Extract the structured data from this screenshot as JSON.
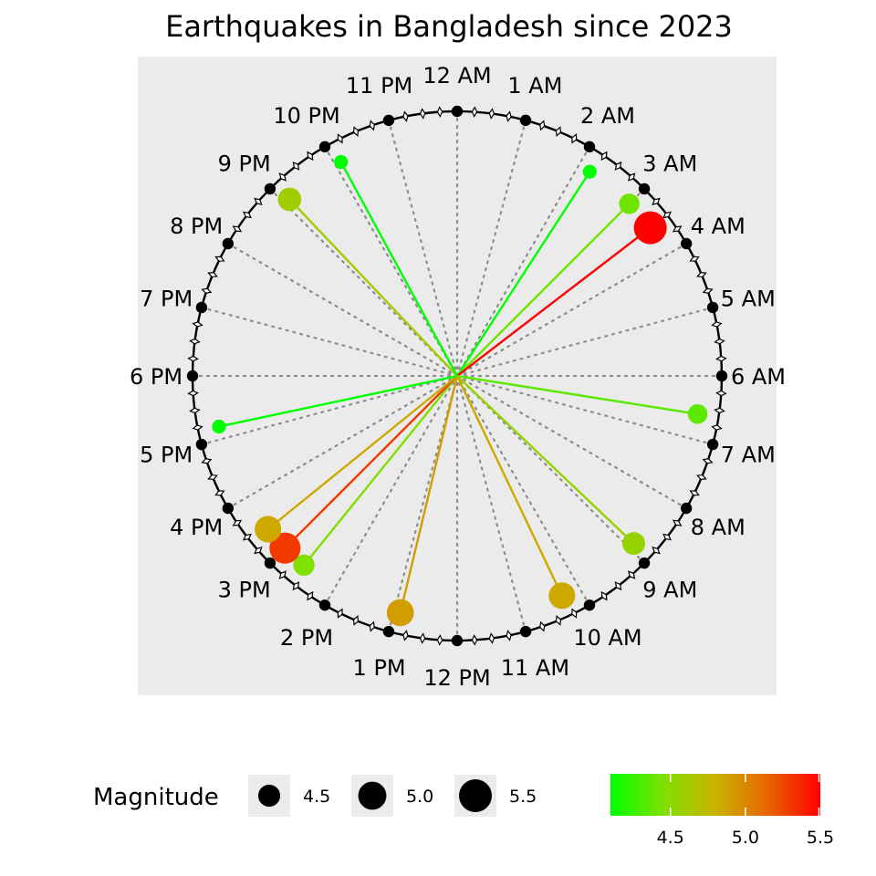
{
  "chart_data": {
    "type": "scatter",
    "coordinate_system": "polar-clock-12h",
    "title": "Earthquakes in Bangladesh since 2023",
    "hour_labels": [
      "12 AM",
      "1 AM",
      "2 AM",
      "3 AM",
      "4 AM",
      "5 AM",
      "6 AM",
      "7 AM",
      "8 AM",
      "9 AM",
      "10 AM",
      "11 AM",
      "12 PM",
      "1 PM",
      "2 PM",
      "3 PM",
      "4 PM",
      "5 PM",
      "6 PM",
      "7 PM",
      "8 PM",
      "9 PM",
      "10 PM",
      "11 PM"
    ],
    "earthquakes": [
      {
        "time_hours": 2.2,
        "magnitude": 4.1
      },
      {
        "time_hours": 3.0,
        "magnitude": 4.4
      },
      {
        "time_hours": 3.5,
        "magnitude": 5.5
      },
      {
        "time_hours": 6.6,
        "magnitude": 4.35
      },
      {
        "time_hours": 8.9,
        "magnitude": 4.55
      },
      {
        "time_hours": 10.3,
        "magnitude": 4.85
      },
      {
        "time_hours": 12.9,
        "magnitude": 4.9
      },
      {
        "time_hours": 14.6,
        "magnitude": 4.45
      },
      {
        "time_hours": 15.0,
        "magnitude": 5.3
      },
      {
        "time_hours": 15.4,
        "magnitude": 4.85
      },
      {
        "time_hours": 17.2,
        "magnitude": 4.1
      },
      {
        "time_hours": 21.1,
        "magnitude": 4.6
      },
      {
        "time_hours": 22.1,
        "magnitude": 4.1
      }
    ],
    "radius_scale": {
      "min": 0,
      "max": 1
    },
    "size_legend": {
      "title": "Magnitude",
      "entries": [
        {
          "value": 4.5,
          "label": "4.5"
        },
        {
          "value": 5.0,
          "label": "5.0"
        },
        {
          "value": 5.5,
          "label": "5.5"
        }
      ]
    },
    "color_legend": {
      "min": 4.1,
      "max": 5.5,
      "ticks": [
        {
          "value": 4.5,
          "label": "4.5"
        },
        {
          "value": 5.0,
          "label": "5.0"
        },
        {
          "value": 5.5,
          "label": "5.5"
        }
      ],
      "gradient": [
        "#00ff00",
        "#80e000",
        "#c8b400",
        "#e86400",
        "#ff0000"
      ]
    },
    "panel_background": "#ebebeb",
    "grid": true
  }
}
